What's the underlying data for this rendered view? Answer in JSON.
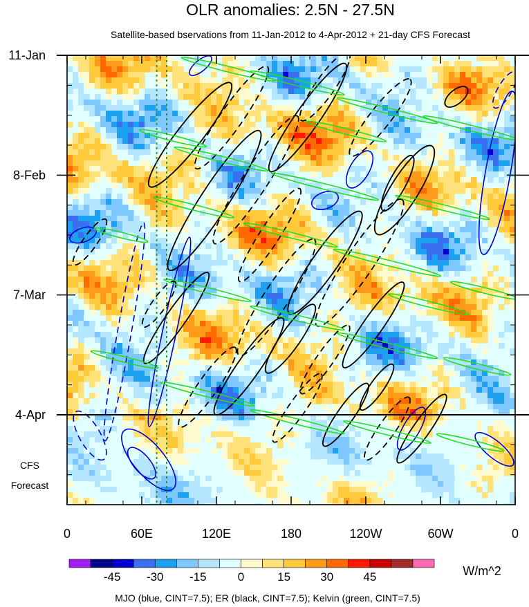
{
  "chart_data": {
    "type": "heatmap",
    "title": "OLR anomalies: 2.5N - 27.5N",
    "subtitle": "Satellite-based bservations from 11-Jan-2012 to 4-Apr-2012 + 21-day CFS Forecast",
    "x_ticks": [
      "0",
      "60E",
      "120E",
      "180",
      "120W",
      "60W",
      "0"
    ],
    "y_ticks": [
      "11-Jan",
      "8-Feb",
      "7-Mar",
      "4-Apr"
    ],
    "forecast_label": [
      "CFS",
      "Forecast"
    ],
    "xlim": [
      0,
      360
    ],
    "y_range": [
      "11-Jan-2012",
      "25-Apr-2012"
    ],
    "observation_end": "4-Apr",
    "colorbar": {
      "unit": "W/m^2",
      "tick_labels": [
        "-45",
        "-30",
        "-15",
        "0",
        "15",
        "30",
        "45"
      ],
      "colors": [
        "#a020f0",
        "#00008b",
        "#0000cd",
        "#3a6ff0",
        "#1ea0f0",
        "#7ec8ff",
        "#b4e6ff",
        "#e1ffff",
        "#fffacd",
        "#ffe27a",
        "#ffc93c",
        "#ff9a1a",
        "#ff6a00",
        "#ff1a00",
        "#c80000",
        "#a52a2a",
        "#ff69b4"
      ]
    },
    "legend_text": "MJO (blue, CINT=7.5); ER (black, CINT=7.5); Kelvin (green, CINT=7.5)",
    "reference_lines_x": [
      72,
      80
    ]
  }
}
